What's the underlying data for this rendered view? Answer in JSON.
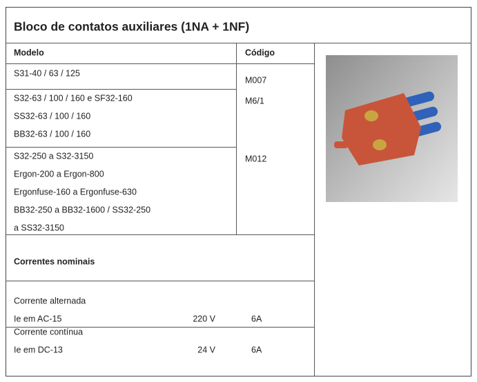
{
  "title": "Bloco de contatos auxiliares (1NA + 1NF)",
  "table": {
    "header": [
      "Modelo",
      "Código"
    ],
    "rows": [
      {
        "models": [
          "S31-40 / 63 / 125"
        ],
        "code": "M007"
      },
      {
        "models": [
          "S32-63 / 100 / 160 e SF32-160",
          "SS32-63 / 100 / 160",
          "BB32-63 / 100 / 160"
        ],
        "code": "M6/1"
      },
      {
        "models": [
          "S32-250 a S32-3150",
          "Ergon-200 a Ergon-800",
          "Ergonfuse-160 a Ergonfuse-630",
          "BB32-250 a BB32-1600 / SS32-250",
          "a SS32-3150"
        ],
        "code": "M012"
      }
    ]
  },
  "ratings": {
    "title": "Correntes nominais",
    "rows": [
      {
        "lines": [
          "Corrente alternada",
          "Ie em AC-15"
        ],
        "voltage": "220 V",
        "current": "6A"
      },
      {
        "lines": [
          "Corrente contínua",
          "Ie em DC-13"
        ],
        "voltage": "24 V",
        "current": "6A"
      }
    ]
  }
}
